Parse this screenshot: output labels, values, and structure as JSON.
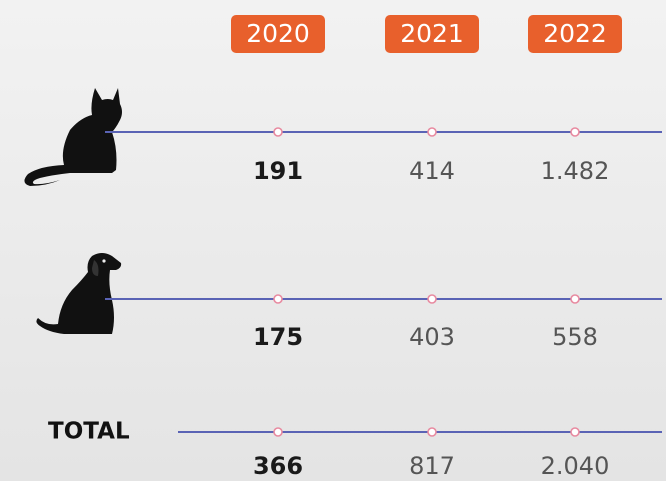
{
  "columns": [
    "2020",
    "2021",
    "2022"
  ],
  "rows": [
    {
      "values": [
        "191",
        "414",
        "1.482"
      ]
    },
    {
      "values": [
        "175",
        "403",
        "558"
      ]
    },
    {
      "label": "TOTAL",
      "values": [
        "366",
        "817",
        "2.040"
      ]
    }
  ]
}
